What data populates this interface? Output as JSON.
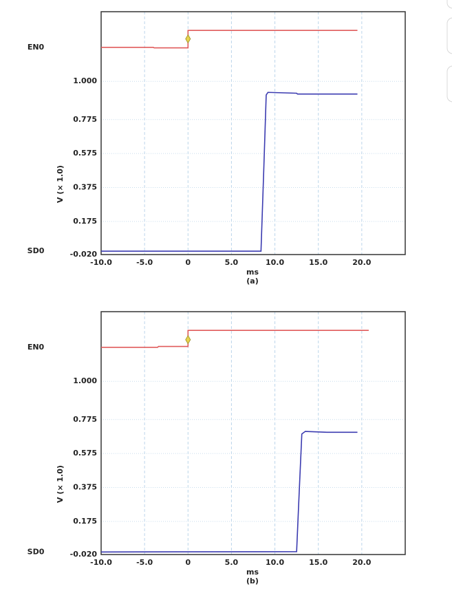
{
  "chart_data": [
    {
      "type": "line",
      "subtitle": "(a)",
      "xlabel": "ms",
      "ylabel": "V (× 1.0)",
      "xlim": [
        -10,
        25
      ],
      "ylim": [
        -0.02,
        1.41
      ],
      "xticks": [
        {
          "value": -10,
          "label": "-10.0"
        },
        {
          "value": -5,
          "label": "-5.0"
        },
        0,
        {
          "value": 5,
          "label": "5.0"
        },
        {
          "value": 10,
          "label": "10.0"
        },
        {
          "value": 15,
          "label": "15.0"
        },
        {
          "value": 20,
          "label": "20.0"
        }
      ],
      "yticks": [
        {
          "value": -0.02,
          "label": "-0.020"
        },
        0.175,
        0.375,
        0.575,
        0.775,
        {
          "value": 1,
          "label": "1.000"
        }
      ],
      "grid": true,
      "series": [
        {
          "name": "EN0",
          "color": "#e05a5a",
          "x": [
            -10,
            -4,
            -3.9,
            0,
            0,
            12,
            19.5
          ],
          "values": [
            1.2,
            1.2,
            1.197,
            1.197,
            1.3,
            1.3,
            1.3
          ]
        },
        {
          "name": "SD0",
          "color": "#3a3ab0",
          "x": [
            -10,
            8.4,
            8.7,
            9.0,
            9.2,
            12.5,
            12.6,
            19.5
          ],
          "values": [
            0.0,
            0.0,
            0.45,
            0.92,
            0.935,
            0.93,
            0.925,
            0.925
          ]
        }
      ],
      "markers": [
        {
          "x": 0,
          "y": 1.25,
          "color": "#e8d44d"
        }
      ]
    },
    {
      "type": "line",
      "subtitle": "(b)",
      "xlabel": "ms",
      "ylabel": "V (× 1.0)",
      "xlim": [
        -10,
        25
      ],
      "ylim": [
        -0.02,
        1.41
      ],
      "xticks": [
        {
          "value": -10,
          "label": "-10.0"
        },
        {
          "value": -5,
          "label": "-5.0"
        },
        0,
        {
          "value": 5,
          "label": "5.0"
        },
        {
          "value": 10,
          "label": "10.0"
        },
        {
          "value": 15,
          "label": "15.0"
        },
        {
          "value": 20,
          "label": "20.0"
        }
      ],
      "yticks": [
        {
          "value": -0.02,
          "label": "-0.020"
        },
        0.175,
        0.375,
        0.575,
        0.775,
        {
          "value": 1,
          "label": "1.000"
        }
      ],
      "grid": true,
      "series": [
        {
          "name": "EN0",
          "color": "#e05a5a",
          "x": [
            -10,
            -3.5,
            -3.4,
            0,
            0,
            16,
            20.8
          ],
          "values": [
            1.2,
            1.2,
            1.205,
            1.205,
            1.3,
            1.3,
            1.3
          ]
        },
        {
          "name": "SD0",
          "color": "#3a3ab0",
          "x": [
            -10,
            12.5,
            12.8,
            13.1,
            13.5,
            16,
            19.5
          ],
          "values": [
            -0.005,
            -0.003,
            0.35,
            0.69,
            0.705,
            0.7,
            0.7
          ]
        }
      ],
      "markers": [
        {
          "x": 0,
          "y": 1.245,
          "color": "#e8d44d"
        }
      ]
    }
  ]
}
